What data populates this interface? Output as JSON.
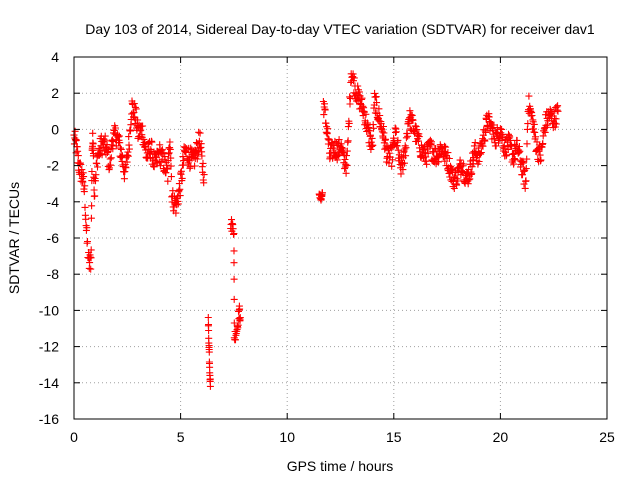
{
  "chart_data": {
    "type": "scatter",
    "title": "Day 103 of 2014, Sidereal Day-to-day VTEC variation (SDTVAR) for receiver dav1",
    "xlabel": "GPS time / hours",
    "ylabel": "SDTVAR / TECUs",
    "xlim": [
      0,
      25
    ],
    "ylim": [
      -16,
      4
    ],
    "xticks": [
      0,
      5,
      10,
      15,
      20,
      25
    ],
    "yticks": [
      -16,
      -14,
      -12,
      -10,
      -8,
      -6,
      -4,
      -2,
      0,
      2,
      4
    ],
    "grid": true,
    "marker": "plus",
    "color": "#ff0000",
    "series": [
      {
        "name": "SDTVAR",
        "anchors": [
          [
            0.0,
            -0.5
          ],
          [
            0.1,
            -0.9
          ],
          [
            0.2,
            -1.8
          ],
          [
            0.3,
            -2.3
          ],
          [
            0.4,
            -2.6
          ],
          [
            0.5,
            -3.5
          ],
          [
            0.6,
            -6.0
          ],
          [
            0.7,
            -7.5
          ],
          [
            0.8,
            -7.2
          ],
          [
            0.85,
            -1.0
          ],
          [
            0.9,
            -0.5
          ],
          [
            0.95,
            -3.6
          ],
          [
            1.1,
            -1.5
          ],
          [
            1.3,
            -0.8
          ],
          [
            1.5,
            -1.0
          ],
          [
            1.7,
            -2.0
          ],
          [
            1.8,
            -0.5
          ],
          [
            2.0,
            -0.3
          ],
          [
            2.2,
            -1.2
          ],
          [
            2.4,
            -2.5
          ],
          [
            2.6,
            -0.5
          ],
          [
            2.7,
            1.3
          ],
          [
            2.9,
            0.7
          ],
          [
            3.0,
            -0.2
          ],
          [
            3.2,
            0.0
          ],
          [
            3.4,
            -1.5
          ],
          [
            3.6,
            -1.0
          ],
          [
            3.8,
            -2.0
          ],
          [
            4.0,
            -1.3
          ],
          [
            4.2,
            -1.8
          ],
          [
            4.4,
            -2.5
          ],
          [
            4.5,
            -0.2
          ],
          [
            4.6,
            -3.8
          ],
          [
            4.8,
            -4.2
          ],
          [
            5.0,
            -3.0
          ],
          [
            5.2,
            -1.2
          ],
          [
            5.4,
            -1.5
          ],
          [
            5.6,
            -1.8
          ],
          [
            5.8,
            -1.0
          ],
          [
            5.9,
            -0.5
          ],
          [
            6.0,
            -1.8
          ],
          [
            6.1,
            -2.5
          ]
        ],
        "noise": 0.6
      },
      {
        "name": "SDTVAR",
        "anchors": [
          [
            6.3,
            -10.6
          ],
          [
            6.33,
            -11.8
          ],
          [
            6.36,
            -13.0
          ],
          [
            6.4,
            -14.2
          ]
        ],
        "noise": 0.3
      },
      {
        "name": "SDTVAR",
        "anchors": [
          [
            7.35,
            -5.2
          ],
          [
            7.5,
            -5.5
          ],
          [
            7.52,
            -11.5
          ],
          [
            7.65,
            -11.0
          ],
          [
            7.75,
            -10.0
          ],
          [
            7.8,
            -10.4
          ]
        ],
        "noise": 0.35
      },
      {
        "name": "SDTVAR",
        "anchors": [
          [
            11.5,
            -3.7
          ],
          [
            11.6,
            -3.8
          ],
          [
            11.65,
            -3.5
          ]
        ],
        "noise": 0.15
      },
      {
        "name": "SDTVAR",
        "anchors": [
          [
            11.7,
            1.5
          ],
          [
            11.8,
            0.5
          ],
          [
            11.9,
            -0.3
          ],
          [
            12.0,
            -1.5
          ],
          [
            12.2,
            -1.0
          ],
          [
            12.4,
            -1.2
          ],
          [
            12.5,
            -0.8
          ],
          [
            12.6,
            -1.5
          ],
          [
            12.8,
            -2.0
          ],
          [
            13.0,
            3.2
          ],
          [
            13.2,
            2.2
          ],
          [
            13.4,
            1.6
          ],
          [
            13.6,
            1.0
          ],
          [
            13.8,
            -0.2
          ],
          [
            14.0,
            -1.0
          ],
          [
            14.1,
            1.6
          ],
          [
            14.3,
            0.7
          ],
          [
            14.5,
            -0.2
          ],
          [
            14.7,
            -1.5
          ],
          [
            14.9,
            -1.5
          ],
          [
            15.1,
            -0.2
          ],
          [
            15.3,
            -2.2
          ],
          [
            15.5,
            -1.6
          ],
          [
            15.7,
            0.7
          ],
          [
            15.9,
            0.2
          ],
          [
            16.1,
            -0.5
          ],
          [
            16.3,
            -1.2
          ],
          [
            16.5,
            -1.5
          ],
          [
            16.7,
            -1.0
          ],
          [
            17.0,
            -1.5
          ],
          [
            17.2,
            -1.0
          ],
          [
            17.5,
            -1.6
          ],
          [
            17.8,
            -2.8
          ],
          [
            18.0,
            -2.5
          ],
          [
            18.2,
            -1.8
          ],
          [
            18.4,
            -2.8
          ],
          [
            18.6,
            -2.2
          ],
          [
            18.8,
            -1.2
          ],
          [
            19.0,
            -1.5
          ],
          [
            19.2,
            -0.5
          ],
          [
            19.4,
            0.5
          ],
          [
            19.6,
            0.0
          ],
          [
            19.8,
            -0.5
          ],
          [
            20.0,
            0.0
          ],
          [
            20.2,
            -1.0
          ],
          [
            20.4,
            -0.8
          ],
          [
            20.6,
            -1.5
          ],
          [
            20.8,
            -1.0
          ],
          [
            21.0,
            -2.0
          ],
          [
            21.2,
            -3.0
          ],
          [
            21.3,
            1.5
          ],
          [
            21.5,
            0.5
          ],
          [
            21.7,
            -1.0
          ],
          [
            21.9,
            -1.5
          ],
          [
            22.1,
            0.3
          ],
          [
            22.3,
            0.8
          ],
          [
            22.5,
            0.5
          ],
          [
            22.7,
            1.0
          ]
        ],
        "noise": 0.55
      }
    ]
  }
}
